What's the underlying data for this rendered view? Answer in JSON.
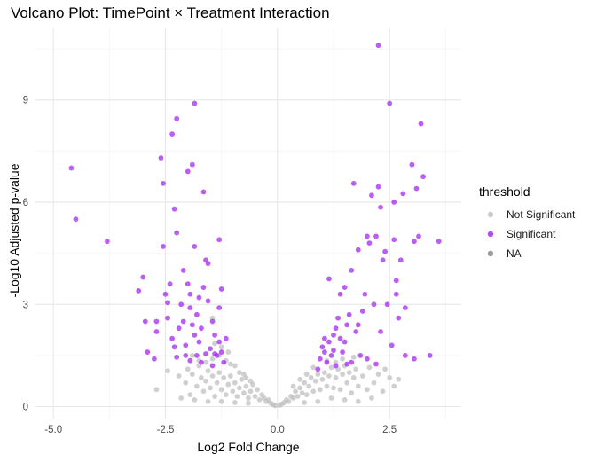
{
  "chart_data": {
    "type": "scatter",
    "title": "Volcano Plot: TimePoint × Treatment Interaction",
    "xlabel": "Log2 Fold Change",
    "ylabel": "-Log10 Adjusted p-value",
    "xlim": [
      -5.4,
      4.1
    ],
    "ylim": [
      -0.35,
      11.1
    ],
    "x_ticks": [
      -5.0,
      -2.5,
      0.0,
      2.5
    ],
    "x_tick_labels": [
      "-5.0",
      "-2.5",
      "0.0",
      "2.5"
    ],
    "y_ticks": [
      0,
      3,
      6,
      9
    ],
    "y_tick_labels": [
      "0",
      "3",
      "6",
      "9"
    ],
    "grid": true,
    "legend": {
      "title": "threshold",
      "position": "right",
      "entries": [
        {
          "label": "Not Significant",
          "color": "#bebebe"
        },
        {
          "label": "Significant",
          "color": "#a020f0"
        },
        {
          "label": "NA",
          "color": "#7f7f7f"
        }
      ]
    },
    "series": [
      {
        "name": "Significant",
        "color": "#a020f0",
        "points": [
          [
            -4.6,
            7.0
          ],
          [
            -4.5,
            5.5
          ],
          [
            -3.8,
            4.85
          ],
          [
            -3.1,
            3.4
          ],
          [
            -3.0,
            3.8
          ],
          [
            -2.95,
            2.5
          ],
          [
            -2.9,
            1.6
          ],
          [
            -2.75,
            1.4
          ],
          [
            -2.7,
            2.5
          ],
          [
            -2.6,
            7.3
          ],
          [
            -2.55,
            6.55
          ],
          [
            -2.55,
            4.7
          ],
          [
            -2.5,
            3.3
          ],
          [
            -2.45,
            2.6
          ],
          [
            -2.4,
            3.6
          ],
          [
            -2.35,
            2.0
          ],
          [
            -2.35,
            8.0
          ],
          [
            -2.3,
            5.8
          ],
          [
            -2.25,
            8.45
          ],
          [
            -2.25,
            5.1
          ],
          [
            -2.2,
            2.3
          ],
          [
            -2.15,
            3.0
          ],
          [
            -2.1,
            4.0
          ],
          [
            -2.1,
            2.5
          ],
          [
            -2.05,
            1.8
          ],
          [
            -2.0,
            3.6
          ],
          [
            -2.0,
            6.9
          ],
          [
            -1.95,
            2.9
          ],
          [
            -1.95,
            3.3
          ],
          [
            -1.9,
            2.4
          ],
          [
            -1.9,
            7.1
          ],
          [
            -1.85,
            8.9
          ],
          [
            -1.85,
            4.7
          ],
          [
            -1.8,
            1.5
          ],
          [
            -1.8,
            2.7
          ],
          [
            -1.75,
            3.2
          ],
          [
            -1.75,
            1.9
          ],
          [
            -1.7,
            2.3
          ],
          [
            -1.65,
            3.5
          ],
          [
            -1.65,
            6.3
          ],
          [
            -1.6,
            4.3
          ],
          [
            -1.55,
            4.2
          ],
          [
            -1.55,
            3.1
          ],
          [
            -1.5,
            1.7
          ],
          [
            -1.45,
            2.5
          ],
          [
            -1.45,
            1.2
          ],
          [
            -1.4,
            2.1
          ],
          [
            -1.35,
            1.5
          ],
          [
            -1.3,
            1.9
          ],
          [
            -1.3,
            2.9
          ],
          [
            -1.25,
            1.6
          ],
          [
            -1.2,
            1.3
          ],
          [
            -1.15,
            2.0
          ],
          [
            -1.3,
            4.9
          ],
          [
            -1.25,
            3.45
          ],
          [
            -2.7,
            2.2
          ],
          [
            -2.3,
            1.75
          ],
          [
            -2.05,
            1.5
          ],
          [
            -1.7,
            1.3
          ],
          [
            -1.4,
            1.55
          ],
          [
            -2.45,
            3.05
          ],
          [
            -1.85,
            2.1
          ],
          [
            -1.6,
            1.55
          ],
          [
            -2.25,
            1.45
          ],
          [
            -1.95,
            1.35
          ],
          [
            0.9,
            1.1
          ],
          [
            0.95,
            1.4
          ],
          [
            1.0,
            1.75
          ],
          [
            1.05,
            2.0
          ],
          [
            1.1,
            1.3
          ],
          [
            1.15,
            1.9
          ],
          [
            1.15,
            3.75
          ],
          [
            1.2,
            1.5
          ],
          [
            1.25,
            2.1
          ],
          [
            1.3,
            1.2
          ],
          [
            1.3,
            2.3
          ],
          [
            1.35,
            2.6
          ],
          [
            1.4,
            3.3
          ],
          [
            1.45,
            1.6
          ],
          [
            1.5,
            1.9
          ],
          [
            1.5,
            3.5
          ],
          [
            1.55,
            2.4
          ],
          [
            1.6,
            2.7
          ],
          [
            1.65,
            4.0
          ],
          [
            1.65,
            1.3
          ],
          [
            1.7,
            6.55
          ],
          [
            1.75,
            2.2
          ],
          [
            1.8,
            4.6
          ],
          [
            1.8,
            2.4
          ],
          [
            1.85,
            1.5
          ],
          [
            1.9,
            2.8
          ],
          [
            1.95,
            3.3
          ],
          [
            2.0,
            5.0
          ],
          [
            2.05,
            4.8
          ],
          [
            2.1,
            6.2
          ],
          [
            2.15,
            3.0
          ],
          [
            2.2,
            5.0
          ],
          [
            2.25,
            10.6
          ],
          [
            2.25,
            6.45
          ],
          [
            2.3,
            5.85
          ],
          [
            2.3,
            2.2
          ],
          [
            2.35,
            4.3
          ],
          [
            2.4,
            4.55
          ],
          [
            2.45,
            3.0
          ],
          [
            2.5,
            8.9
          ],
          [
            2.55,
            1.8
          ],
          [
            2.6,
            4.9
          ],
          [
            2.6,
            6.0
          ],
          [
            2.65,
            3.7
          ],
          [
            2.7,
            2.6
          ],
          [
            2.75,
            4.3
          ],
          [
            2.8,
            6.25
          ],
          [
            2.85,
            2.9
          ],
          [
            3.0,
            7.1
          ],
          [
            3.05,
            4.85
          ],
          [
            3.1,
            6.4
          ],
          [
            3.15,
            5.0
          ],
          [
            3.2,
            8.3
          ],
          [
            3.25,
            6.75
          ],
          [
            3.4,
            1.5
          ],
          [
            3.6,
            4.85
          ],
          [
            2.85,
            1.5
          ],
          [
            3.05,
            1.4
          ],
          [
            1.55,
            1.25
          ],
          [
            1.25,
            1.65
          ],
          [
            2.0,
            1.4
          ],
          [
            2.2,
            1.25
          ],
          [
            1.05,
            1.6
          ],
          [
            1.4,
            2.0
          ],
          [
            2.65,
            3.3
          ]
        ]
      },
      {
        "name": "Not Significant",
        "color": "#bebebe",
        "points": [
          [
            -2.7,
            0.5
          ],
          [
            -2.45,
            1.05
          ],
          [
            -2.2,
            0.9
          ],
          [
            -2.05,
            0.7
          ],
          [
            -2.0,
            1.1
          ],
          [
            -1.95,
            0.35
          ],
          [
            -1.9,
            0.95
          ],
          [
            -1.8,
            0.6
          ],
          [
            -1.75,
            1.2
          ],
          [
            -1.7,
            0.85
          ],
          [
            -1.65,
            0.45
          ],
          [
            -1.6,
            0.75
          ],
          [
            -1.55,
            1.05
          ],
          [
            -1.5,
            0.55
          ],
          [
            -1.45,
            0.9
          ],
          [
            -1.4,
            0.3
          ],
          [
            -1.35,
            0.7
          ],
          [
            -1.3,
            1.0
          ],
          [
            -1.25,
            0.5
          ],
          [
            -1.2,
            0.85
          ],
          [
            -1.15,
            0.35
          ],
          [
            -1.1,
            0.65
          ],
          [
            -1.05,
            0.9
          ],
          [
            -1.0,
            0.45
          ],
          [
            -0.95,
            0.7
          ],
          [
            -0.9,
            0.3
          ],
          [
            -0.85,
            0.55
          ],
          [
            -0.8,
            0.8
          ],
          [
            -0.75,
            0.4
          ],
          [
            -0.7,
            0.6
          ],
          [
            -0.65,
            0.25
          ],
          [
            -0.6,
            0.45
          ],
          [
            -0.55,
            0.65
          ],
          [
            -0.5,
            0.3
          ],
          [
            -0.45,
            0.5
          ],
          [
            -0.4,
            0.2
          ],
          [
            -0.35,
            0.35
          ],
          [
            -0.3,
            0.25
          ],
          [
            -0.25,
            0.15
          ],
          [
            -0.2,
            0.2
          ],
          [
            -0.15,
            0.1
          ],
          [
            -0.1,
            0.06
          ],
          [
            -0.05,
            0.03
          ],
          [
            -1.3,
            1.5
          ],
          [
            -1.15,
            1.35
          ],
          [
            -1.05,
            1.25
          ],
          [
            -0.95,
            1.2
          ],
          [
            -1.45,
            1.4
          ],
          [
            -1.6,
            1.3
          ],
          [
            -1.75,
            1.35
          ],
          [
            -1.9,
            1.5
          ],
          [
            -0.85,
            1.0
          ],
          [
            -0.75,
            0.95
          ],
          [
            -1.25,
            1.75
          ],
          [
            -1.1,
            1.6
          ],
          [
            -1.45,
            2.6
          ],
          [
            -1.4,
            1.85
          ],
          [
            -0.7,
            0.85
          ],
          [
            -0.6,
            0.75
          ],
          [
            -2.15,
            0.25
          ],
          [
            -1.85,
            0.2
          ],
          [
            -1.55,
            0.15
          ],
          [
            -1.25,
            0.15
          ],
          [
            -0.95,
            0.12
          ],
          [
            -0.65,
            0.1
          ],
          [
            0.05,
            0.04
          ],
          [
            0.1,
            0.08
          ],
          [
            0.15,
            0.12
          ],
          [
            0.2,
            0.2
          ],
          [
            0.25,
            0.15
          ],
          [
            0.3,
            0.3
          ],
          [
            0.35,
            0.25
          ],
          [
            0.4,
            0.45
          ],
          [
            0.45,
            0.3
          ],
          [
            0.5,
            0.55
          ],
          [
            0.55,
            0.4
          ],
          [
            0.6,
            0.7
          ],
          [
            0.65,
            0.35
          ],
          [
            0.7,
            0.6
          ],
          [
            0.75,
            0.85
          ],
          [
            0.8,
            0.45
          ],
          [
            0.85,
            0.75
          ],
          [
            0.9,
            0.95
          ],
          [
            0.95,
            0.5
          ],
          [
            1.0,
            0.8
          ],
          [
            1.05,
            1.0
          ],
          [
            1.1,
            0.6
          ],
          [
            1.15,
            0.9
          ],
          [
            1.2,
            1.15
          ],
          [
            1.25,
            0.55
          ],
          [
            1.3,
            0.85
          ],
          [
            1.35,
            1.1
          ],
          [
            1.4,
            0.5
          ],
          [
            1.45,
            0.95
          ],
          [
            1.5,
            1.2
          ],
          [
            1.55,
            0.7
          ],
          [
            1.6,
            1.0
          ],
          [
            1.65,
            0.4
          ],
          [
            1.7,
            0.85
          ],
          [
            1.75,
            1.1
          ],
          [
            1.8,
            0.6
          ],
          [
            1.9,
            0.9
          ],
          [
            2.0,
            0.5
          ],
          [
            2.05,
            1.15
          ],
          [
            2.15,
            0.7
          ],
          [
            2.25,
            0.95
          ],
          [
            2.35,
            0.45
          ],
          [
            2.5,
            0.85
          ],
          [
            2.6,
            0.6
          ],
          [
            2.7,
            0.8
          ],
          [
            2.4,
            1.1
          ],
          [
            1.1,
            1.35
          ],
          [
            1.3,
            1.3
          ],
          [
            1.45,
            1.4
          ],
          [
            0.8,
            1.15
          ],
          [
            0.65,
            0.95
          ],
          [
            0.5,
            0.8
          ],
          [
            0.35,
            0.6
          ],
          [
            1.7,
            1.45
          ],
          [
            1.2,
            0.25
          ],
          [
            1.5,
            0.2
          ],
          [
            1.8,
            0.15
          ],
          [
            2.1,
            0.25
          ],
          [
            0.9,
            0.15
          ],
          [
            0.6,
            0.12
          ]
        ]
      }
    ]
  }
}
